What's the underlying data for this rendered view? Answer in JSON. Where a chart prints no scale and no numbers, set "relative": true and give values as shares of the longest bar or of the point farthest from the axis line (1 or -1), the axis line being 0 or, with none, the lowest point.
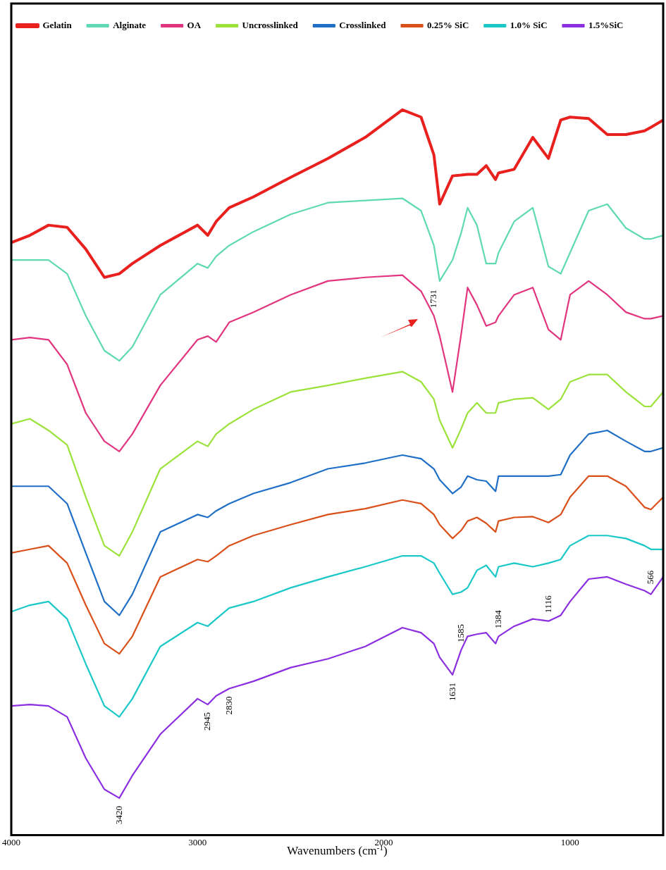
{
  "chart_data": {
    "type": "line",
    "xlabel": "Wavenumbers (cm$^{-1}$)",
    "relative": true,
    "legend": "top",
    "xlim": [
      4000,
      500
    ],
    "xticks": [
      4000,
      3000,
      2000,
      1000
    ],
    "x": [
      4000,
      3900,
      3800,
      3700,
      3600,
      3500,
      3420,
      3350,
      3200,
      3000,
      2945,
      2900,
      2830,
      2700,
      2500,
      2300,
      2100,
      1900,
      1800,
      1731,
      1700,
      1631,
      1585,
      1550,
      1500,
      1450,
      1400,
      1384,
      1300,
      1200,
      1116,
      1050,
      1000,
      900,
      800,
      700,
      600,
      566,
      500
    ],
    "series": [
      {
        "name": "Gelatin",
        "color": "#e8201e",
        "values": [
          0.817,
          0.827,
          0.841,
          0.838,
          0.808,
          0.769,
          0.774,
          0.788,
          0.813,
          0.841,
          0.827,
          0.846,
          0.865,
          0.88,
          0.907,
          0.933,
          0.962,
          1.0,
          0.99,
          0.938,
          0.87,
          0.909,
          0.91,
          0.911,
          0.911,
          0.923,
          0.904,
          0.913,
          0.918,
          0.962,
          0.933,
          0.986,
          0.99,
          0.988,
          0.966,
          0.966,
          0.971,
          0.976,
          0.986
        ]
      },
      {
        "name": "Alginate",
        "color": "#5fd9b4",
        "values": [
          0.793,
          0.793,
          0.793,
          0.774,
          0.716,
          0.668,
          0.654,
          0.673,
          0.745,
          0.788,
          0.782,
          0.798,
          0.813,
          0.832,
          0.856,
          0.872,
          0.875,
          0.878,
          0.861,
          0.813,
          0.764,
          0.793,
          0.83,
          0.865,
          0.841,
          0.788,
          0.788,
          0.803,
          0.846,
          0.865,
          0.784,
          0.774,
          0.803,
          0.861,
          0.87,
          0.837,
          0.822,
          0.822,
          0.827
        ]
      },
      {
        "name": "OA",
        "color": "#e2357f",
        "values": [
          0.683,
          0.686,
          0.683,
          0.649,
          0.582,
          0.543,
          0.529,
          0.553,
          0.62,
          0.683,
          0.688,
          0.68,
          0.707,
          0.721,
          0.745,
          0.764,
          0.769,
          0.772,
          0.75,
          0.716,
          0.688,
          0.611,
          0.69,
          0.755,
          0.731,
          0.702,
          0.707,
          0.716,
          0.745,
          0.755,
          0.697,
          0.683,
          0.745,
          0.764,
          0.745,
          0.721,
          0.712,
          0.712,
          0.716
        ]
      },
      {
        "name": "Uncrosslinked",
        "color": "#9be23a",
        "values": [
          0.567,
          0.574,
          0.558,
          0.538,
          0.466,
          0.399,
          0.385,
          0.418,
          0.505,
          0.543,
          0.536,
          0.553,
          0.567,
          0.587,
          0.611,
          0.62,
          0.63,
          0.639,
          0.625,
          0.601,
          0.572,
          0.534,
          0.56,
          0.582,
          0.596,
          0.582,
          0.582,
          0.596,
          0.601,
          0.603,
          0.587,
          0.601,
          0.625,
          0.635,
          0.635,
          0.611,
          0.591,
          0.591,
          0.611
        ]
      },
      {
        "name": "Crosslinked",
        "color": "#1f6fc6",
        "values": [
          0.481,
          0.481,
          0.481,
          0.457,
          0.389,
          0.322,
          0.303,
          0.332,
          0.418,
          0.442,
          0.438,
          0.447,
          0.457,
          0.471,
          0.486,
          0.505,
          0.513,
          0.524,
          0.519,
          0.505,
          0.49,
          0.471,
          0.48,
          0.495,
          0.49,
          0.488,
          0.474,
          0.495,
          0.495,
          0.495,
          0.495,
          0.497,
          0.524,
          0.553,
          0.558,
          0.543,
          0.529,
          0.529,
          0.534
        ]
      },
      {
        "name": "0.25% SiC",
        "color": "#d9501a",
        "values": [
          0.389,
          0.394,
          0.399,
          0.375,
          0.317,
          0.264,
          0.25,
          0.274,
          0.356,
          0.38,
          0.377,
          0.385,
          0.399,
          0.413,
          0.428,
          0.442,
          0.45,
          0.462,
          0.457,
          0.442,
          0.428,
          0.409,
          0.42,
          0.433,
          0.438,
          0.43,
          0.418,
          0.433,
          0.438,
          0.439,
          0.431,
          0.442,
          0.466,
          0.495,
          0.495,
          0.481,
          0.452,
          0.449,
          0.466
        ]
      },
      {
        "name": "1.0% SiC",
        "color": "#1ac8c8",
        "values": [
          0.308,
          0.317,
          0.322,
          0.298,
          0.236,
          0.178,
          0.163,
          0.188,
          0.26,
          0.293,
          0.288,
          0.298,
          0.313,
          0.322,
          0.341,
          0.356,
          0.37,
          0.385,
          0.385,
          0.375,
          0.361,
          0.332,
          0.335,
          0.341,
          0.365,
          0.372,
          0.356,
          0.37,
          0.375,
          0.37,
          0.375,
          0.38,
          0.399,
          0.413,
          0.413,
          0.409,
          0.399,
          0.394,
          0.394
        ]
      },
      {
        "name": "1.5%SiC",
        "color": "#8b2fe0",
        "values": [
          0.178,
          0.18,
          0.178,
          0.163,
          0.106,
          0.063,
          0.051,
          0.082,
          0.139,
          0.188,
          0.18,
          0.192,
          0.202,
          0.212,
          0.231,
          0.243,
          0.26,
          0.286,
          0.279,
          0.264,
          0.245,
          0.221,
          0.255,
          0.274,
          0.277,
          0.279,
          0.264,
          0.274,
          0.288,
          0.298,
          0.295,
          0.303,
          0.322,
          0.353,
          0.356,
          0.346,
          0.337,
          0.332,
          0.356
        ]
      }
    ],
    "annotations": [
      {
        "text": "1731",
        "x": 1731,
        "y": 0.716
      },
      {
        "text": "3420",
        "x": 3420,
        "y": 0.051
      },
      {
        "text": "2945",
        "x": 2945,
        "y": 0.18
      },
      {
        "text": "2830",
        "x": 2830,
        "y": 0.202
      },
      {
        "text": "1631",
        "x": 1631,
        "y": 0.221
      },
      {
        "text": "1585",
        "x": 1585,
        "y": 0.255
      },
      {
        "text": "1384",
        "x": 1384,
        "y": 0.274
      },
      {
        "text": "1116",
        "x": 1116,
        "y": 0.295
      },
      {
        "text": "566",
        "x": 566,
        "y": 0.332
      }
    ]
  }
}
